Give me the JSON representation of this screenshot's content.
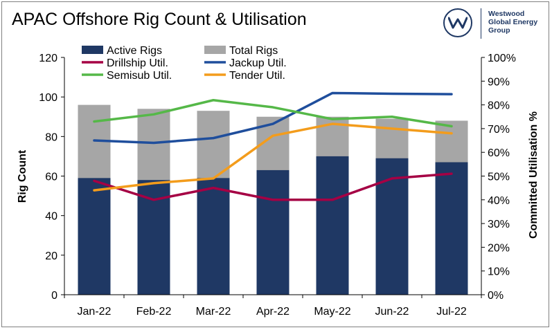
{
  "title": "APAC Offshore Rig Count & Utilisation",
  "logo": {
    "icon": "westwood-w-icon",
    "lines": [
      "Westwood",
      "Global Energy",
      "Group"
    ]
  },
  "chart_data": {
    "type": "bar",
    "categories": [
      "Jan-22",
      "Feb-22",
      "Mar-22",
      "Apr-22",
      "May-22",
      "Jun-22",
      "Jul-22"
    ],
    "bar_series": [
      {
        "name": "Total Rigs",
        "color": "#a6a6a6",
        "values": [
          96,
          94,
          93,
          90,
          90,
          89,
          88
        ]
      },
      {
        "name": "Active Rigs",
        "color": "#1f3864",
        "values": [
          59,
          58,
          59,
          63,
          70,
          69,
          67
        ]
      }
    ],
    "line_series": [
      {
        "name": "Drillship Util.",
        "color": "#a50044",
        "values": [
          48,
          40,
          45,
          40,
          40,
          49,
          51
        ]
      },
      {
        "name": "Jackup Util.",
        "color": "#1f4e9c",
        "values": [
          65,
          64,
          66,
          72,
          85,
          84.7,
          84.5
        ]
      },
      {
        "name": "Semisub Util.",
        "color": "#55b848",
        "values": [
          73,
          76,
          82,
          79,
          74,
          75,
          71
        ]
      },
      {
        "name": "Tender Util.",
        "color": "#f39c1c",
        "values": [
          44,
          47,
          49,
          67,
          72,
          70,
          68
        ]
      }
    ],
    "ylabel": "Rig Count",
    "y2label": "Committed Utilisation %",
    "ylim": [
      0,
      120
    ],
    "y2lim": [
      0,
      100
    ],
    "yticks": [
      "0",
      "20",
      "40",
      "60",
      "80",
      "100",
      "120"
    ],
    "y2ticks": [
      "0%",
      "10%",
      "20%",
      "30%",
      "40%",
      "50%",
      "60%",
      "70%",
      "80%",
      "90%",
      "100%"
    ],
    "legend": [
      {
        "name": "Active Rigs",
        "kind": "box",
        "color": "#1f3864"
      },
      {
        "name": "Total Rigs",
        "kind": "box",
        "color": "#a6a6a6"
      },
      {
        "name": "Drillship Util.",
        "kind": "line",
        "color": "#a50044"
      },
      {
        "name": "Jackup Util.",
        "kind": "line",
        "color": "#1f4e9c"
      },
      {
        "name": "Semisub Util.",
        "kind": "line",
        "color": "#55b848"
      },
      {
        "name": "Tender Util.",
        "kind": "line",
        "color": "#f39c1c"
      }
    ],
    "legend_position": "top",
    "grid": false
  }
}
